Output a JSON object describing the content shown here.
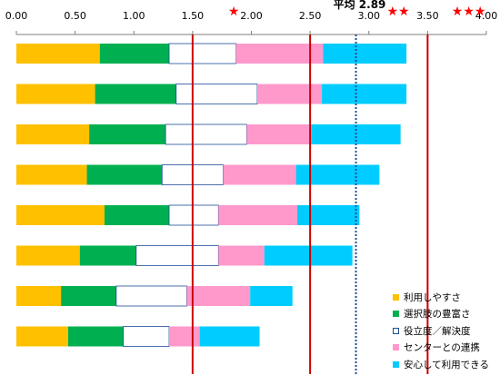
{
  "chart_data": {
    "type": "bar",
    "orientation": "horizontal",
    "stacked": true,
    "x_ticks": [
      "0.00",
      "0.50",
      "1.00",
      "1.50",
      "2.00",
      "2.50",
      "3.00",
      "3.50",
      "4.00"
    ],
    "xlim": [
      0,
      4.0
    ],
    "grid": false,
    "legend_position": "bottom-right",
    "series": [
      {
        "name": "利用しやすさ",
        "color": "#ffc000",
        "values": [
          0.71,
          0.67,
          0.62,
          0.6,
          0.75,
          0.54,
          0.38,
          0.44
        ]
      },
      {
        "name": "選択肢の豊富さ",
        "color": "#00b050",
        "values": [
          0.59,
          0.69,
          0.65,
          0.64,
          0.55,
          0.48,
          0.47,
          0.47
        ]
      },
      {
        "name": "役立度／解決度",
        "color": "#ffffff",
        "values": [
          0.57,
          0.69,
          0.69,
          0.52,
          0.42,
          0.7,
          0.6,
          0.39
        ]
      },
      {
        "name": "センターとの連携",
        "color": "#ff99cc",
        "values": [
          0.74,
          0.55,
          0.55,
          0.62,
          0.67,
          0.39,
          0.54,
          0.26
        ]
      },
      {
        "name": "安心して利用できる",
        "color": "#00ccff",
        "values": [
          0.71,
          0.72,
          0.76,
          0.71,
          0.53,
          0.75,
          0.36,
          0.51
        ]
      }
    ],
    "reference_lines": [
      {
        "value": 1.5,
        "style": "solid",
        "color": "#cc0000"
      },
      {
        "value": 2.5,
        "style": "solid",
        "color": "#cc0000"
      },
      {
        "value": 3.5,
        "style": "solid",
        "color": "#cc0000"
      },
      {
        "value": 2.89,
        "style": "dotted",
        "color": "#1f4e99",
        "label": "平均 2.89"
      }
    ],
    "star_annotations": [
      {
        "value": 1.85,
        "text": "★"
      },
      {
        "value": 3.25,
        "text": "★★"
      },
      {
        "value": 3.85,
        "text": "★★★"
      }
    ]
  }
}
